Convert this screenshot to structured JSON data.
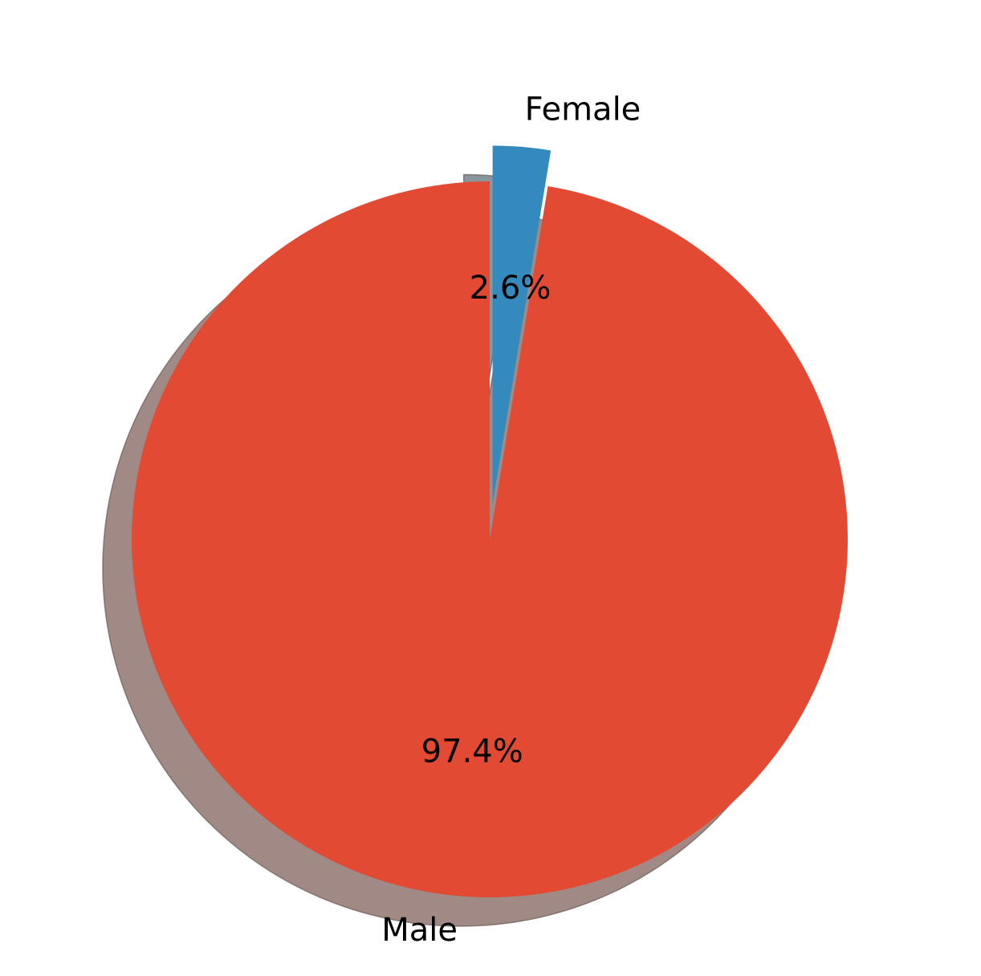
{
  "chart_data": {
    "type": "pie",
    "start_angle_deg": 90,
    "direction": "counterclockwise",
    "shadow": true,
    "slices": [
      {
        "label": "Male",
        "value": 97.4,
        "pct_label": "97.4%",
        "color": "#e24a33",
        "shadow_color": "#a18a85",
        "exploded": false
      },
      {
        "label": "Female",
        "value": 2.6,
        "pct_label": "2.6%",
        "color": "#348abd",
        "shadow_color": "#89969e",
        "exploded": true
      }
    ]
  }
}
